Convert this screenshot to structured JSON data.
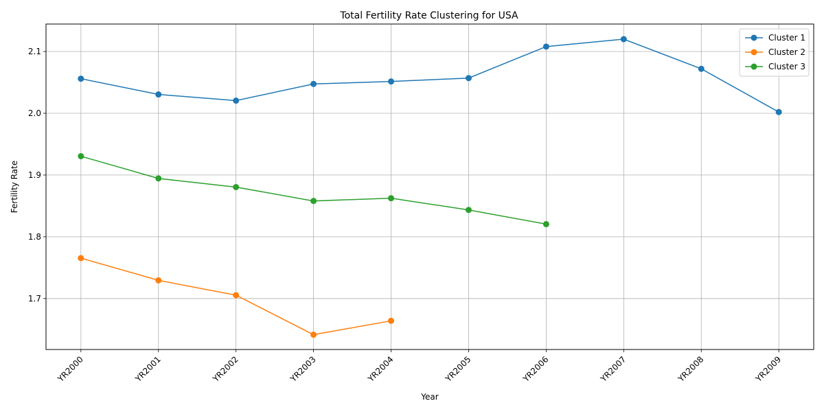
{
  "chart_data": {
    "type": "line",
    "title": "Total Fertility Rate Clustering for USA",
    "xlabel": "Year",
    "ylabel": "Fertility Rate",
    "categories": [
      "YR2000",
      "YR2001",
      "YR2002",
      "YR2003",
      "YR2004",
      "YR2005",
      "YR2006",
      "YR2007",
      "YR2008",
      "YR2009"
    ],
    "ylim": [
      1.6175,
      2.1445
    ],
    "yticks": [
      1.7,
      1.8,
      1.9,
      2.0,
      2.1
    ],
    "ytick_labels": [
      "1.7",
      "1.8",
      "1.9",
      "2.0",
      "2.1"
    ],
    "grid": true,
    "legend_position": "top-right",
    "series": [
      {
        "name": "Cluster 1",
        "color": "#1f77b4",
        "values": [
          2.056,
          2.0305,
          2.0205,
          2.0475,
          2.0515,
          2.057,
          2.108,
          2.12,
          2.072,
          2.002
        ]
      },
      {
        "name": "Cluster 2",
        "color": "#ff7f0e",
        "values": [
          1.7655,
          1.7295,
          1.7055,
          1.6415,
          1.664,
          null,
          null,
          null,
          null,
          null
        ]
      },
      {
        "name": "Cluster 3",
        "color": "#2ca02c",
        "values": [
          1.9305,
          1.8945,
          1.8805,
          1.858,
          1.8625,
          1.8435,
          1.8205,
          null,
          null,
          null
        ]
      }
    ]
  }
}
